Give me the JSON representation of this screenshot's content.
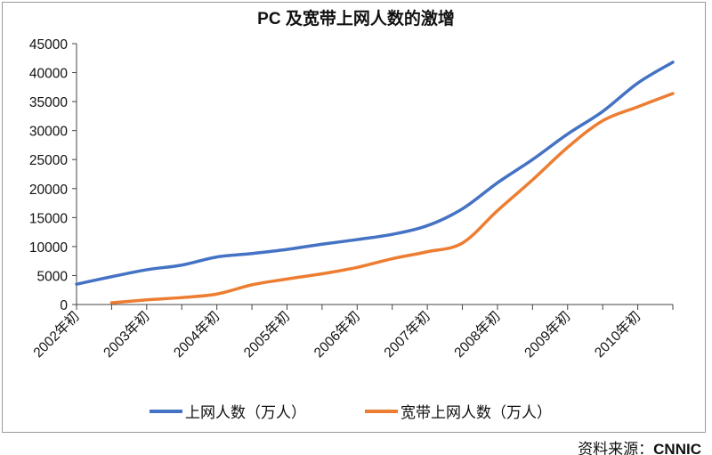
{
  "chart_data": {
    "type": "line",
    "title": "PC 及宽带上网人数的激增",
    "categories": [
      "2002年初",
      "",
      "2003年初",
      "",
      "2004年初",
      "",
      "2005年初",
      "",
      "2006年初",
      "",
      "2007年初",
      "",
      "2008年初",
      "",
      "2009年初",
      "",
      "2010年初",
      ""
    ],
    "ylim": [
      0,
      45000
    ],
    "yticks": [
      0,
      5000,
      10000,
      15000,
      20000,
      25000,
      30000,
      35000,
      40000,
      45000
    ],
    "grid": false,
    "legend_position": "bottom",
    "series": [
      {
        "name": "上网人数（万人）",
        "color": "#4472C4",
        "values": [
          3500,
          4800,
          6000,
          6800,
          8200,
          8800,
          9500,
          10400,
          11200,
          12100,
          13600,
          16500,
          21000,
          25000,
          29400,
          33300,
          38200,
          41800
        ]
      },
      {
        "name": "宽带上网人数（万人）",
        "color": "#ED7D31",
        "values": [
          null,
          300,
          800,
          1200,
          1800,
          3400,
          4400,
          5300,
          6400,
          7900,
          9100,
          10600,
          16200,
          21500,
          27100,
          31700,
          34100,
          36400
        ]
      }
    ]
  },
  "source": {
    "label": "资料来源：",
    "value": "CNNIC"
  }
}
